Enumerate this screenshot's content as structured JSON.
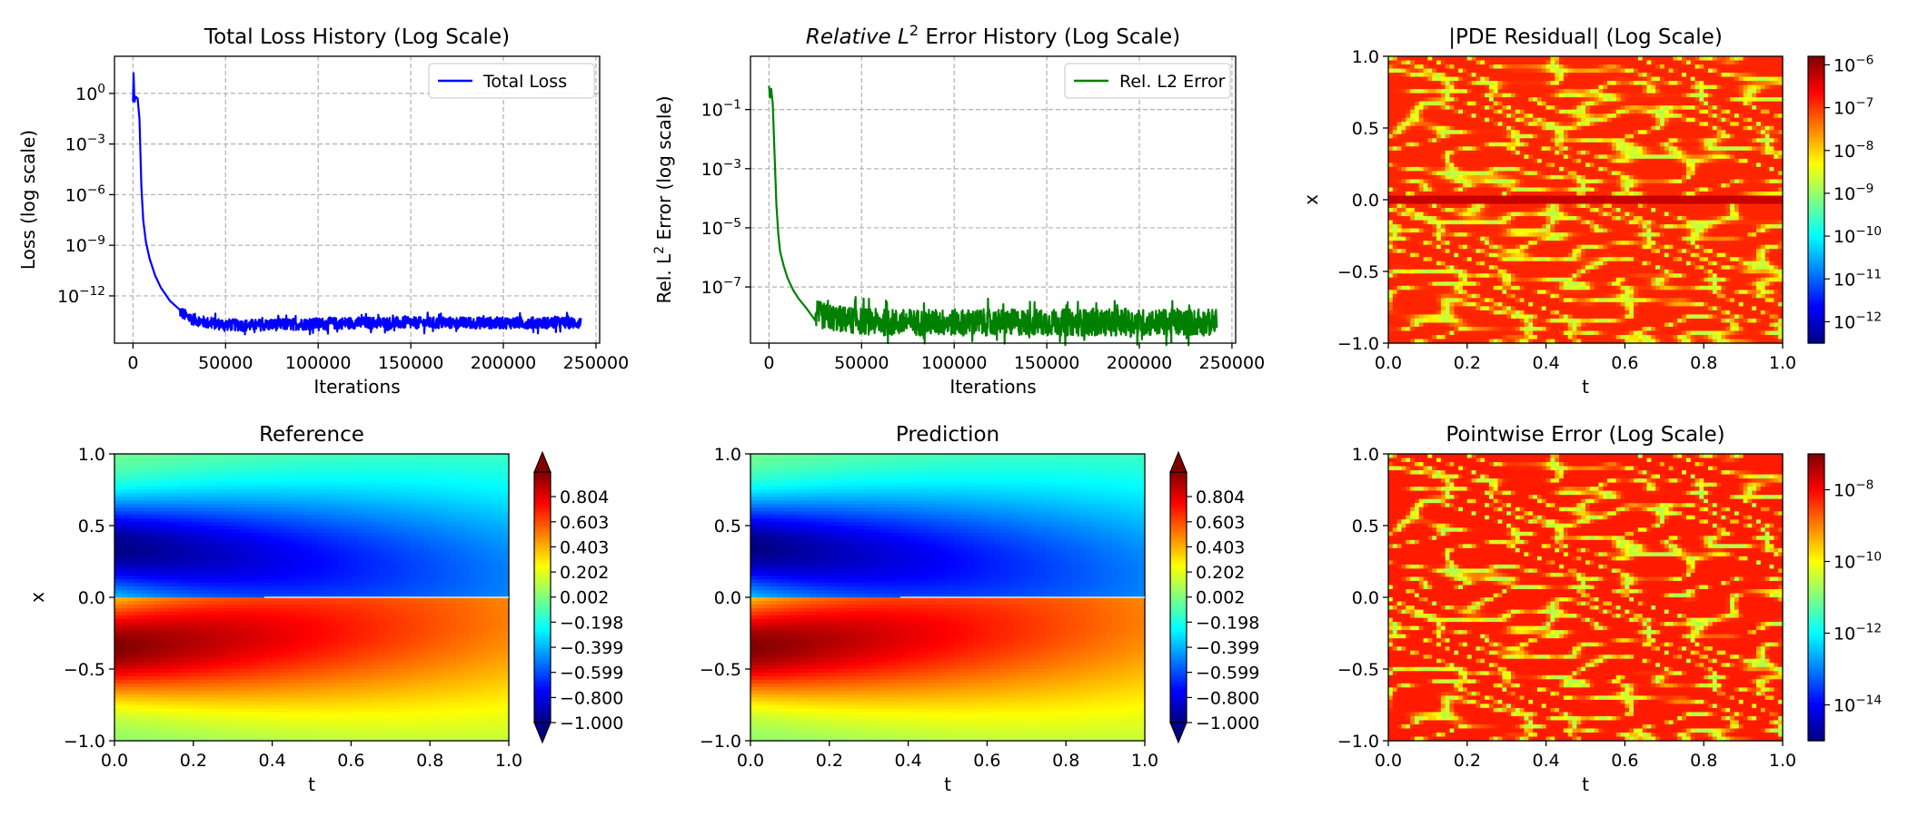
{
  "chart_data": [
    {
      "id": "loss",
      "type": "line",
      "title": "Total Loss History (Log Scale)",
      "xlabel": "Iterations",
      "ylabel": "Loss (log scale)",
      "yscale": "log",
      "xlim": [
        -10000,
        252000
      ],
      "ylim_exp": [
        -14.8,
        2.2
      ],
      "xticks": [
        0,
        50000,
        100000,
        150000,
        200000,
        250000
      ],
      "xtick_labels": [
        "0",
        "50000",
        "100000",
        "150000",
        "200000",
        "250000"
      ],
      "yticks_exp": [
        0,
        -3,
        -6,
        -9,
        -12
      ],
      "ytick_labels": [
        "10",
        "10",
        "10",
        "10",
        "10"
      ],
      "ytick_sups": [
        "0",
        "−3",
        "−6",
        "−9",
        "−12"
      ],
      "grid": true,
      "legend_position": "top-right",
      "series": [
        {
          "name": "Total Loss",
          "color": "#0000ff",
          "x": [
            0,
            300,
            800,
            1500,
            2500,
            3500,
            4500,
            5500,
            7000,
            9000,
            12000,
            15000,
            20000,
            25000,
            30000,
            40000,
            50000,
            60000,
            80000,
            100000,
            120000,
            140000,
            160000,
            180000,
            200000,
            220000,
            240000
          ],
          "log10_y": [
            -0.5,
            1.2,
            -0.5,
            -0.2,
            -0.3,
            -1.5,
            -5.5,
            -7.5,
            -8.8,
            -9.8,
            -10.8,
            -11.5,
            -12.3,
            -12.9,
            -13.3,
            -13.6,
            -13.7,
            -13.75,
            -13.7,
            -13.65,
            -13.6,
            -13.6,
            -13.6,
            -13.6,
            -13.6,
            -13.6,
            -13.6
          ],
          "noise_start": 25000,
          "noise_amp": 0.35,
          "noise_end": 242000
        }
      ]
    },
    {
      "id": "l2",
      "type": "line",
      "title": "Relative L",
      "title_sup": "2",
      "title_rest": " Error History (Log Scale)",
      "xlabel": "Iterations",
      "ylabel": "Rel. L",
      "ylabel_sup": "2",
      "ylabel_rest": " Error (log scale)",
      "yscale": "log",
      "xlim": [
        -10000,
        252000
      ],
      "ylim_exp": [
        -8.9,
        0.8
      ],
      "xticks": [
        0,
        50000,
        100000,
        150000,
        200000,
        250000
      ],
      "xtick_labels": [
        "0",
        "50000",
        "100000",
        "150000",
        "200000",
        "250000"
      ],
      "yticks_exp": [
        -1,
        -3,
        -5,
        -7
      ],
      "ytick_labels": [
        "10",
        "10",
        "10",
        "10"
      ],
      "ytick_sups": [
        "−1",
        "−3",
        "−5",
        "−7"
      ],
      "grid": true,
      "legend_position": "top-right",
      "series": [
        {
          "name": "Rel. L2 Error",
          "color": "#008000",
          "x": [
            0,
            500,
            1200,
            2000,
            3000,
            4000,
            5000,
            6000,
            8000,
            10000,
            13000,
            16000,
            20000,
            25000,
            30000,
            40000,
            50000,
            60000,
            80000,
            100000,
            120000,
            140000,
            160000,
            180000,
            200000,
            220000,
            240000
          ],
          "log10_y": [
            -0.2,
            -0.6,
            -0.3,
            -0.8,
            -2.5,
            -4.2,
            -5.2,
            -5.8,
            -6.3,
            -6.7,
            -7.1,
            -7.4,
            -7.7,
            -7.9,
            -8.0,
            -8.1,
            -8.15,
            -8.2,
            -8.2,
            -8.2,
            -8.2,
            -8.2,
            -8.2,
            -8.2,
            -8.2,
            -8.2,
            -8.2
          ],
          "noise_start": 25000,
          "noise_amp": 0.45,
          "noise_end": 242000
        }
      ]
    },
    {
      "id": "residual",
      "type": "heatmap",
      "title": "|PDE Residual| (Log Scale)",
      "xlabel": "t",
      "ylabel": "x",
      "xlim": [
        0.0,
        1.0
      ],
      "ylim": [
        -1.0,
        1.0
      ],
      "xtick_labels": [
        "0.0",
        "0.2",
        "0.4",
        "0.6",
        "0.8",
        "1.0"
      ],
      "ytick_labels": [
        "1.0",
        "0.5",
        "0.0",
        "−0.5",
        "−1.0"
      ],
      "colormap": "jet",
      "color_scale": "log",
      "colorbar_exp_range": [
        -12.5,
        -5.8
      ],
      "colorbar_ticks_exp": [
        -6,
        -7,
        -8,
        -9,
        -10,
        -11,
        -12
      ],
      "colorbar_tick_labels": [
        "10",
        "10",
        "10",
        "10",
        "10",
        "10",
        "10"
      ],
      "colorbar_tick_sups": [
        "−6",
        "−7",
        "−8",
        "−9",
        "−10",
        "−11",
        "−12"
      ]
    },
    {
      "id": "reference",
      "type": "heatmap",
      "title": "Reference",
      "xlabel": "t",
      "ylabel": "x",
      "xlim": [
        0.0,
        1.0
      ],
      "ylim": [
        -1.0,
        1.0
      ],
      "xtick_labels": [
        "0.0",
        "0.2",
        "0.4",
        "0.6",
        "0.8",
        "1.0"
      ],
      "ytick_labels": [
        "1.0",
        "0.5",
        "0.0",
        "−0.5",
        "−1.0"
      ],
      "colormap": "jet",
      "color_scale": "linear",
      "colorbar_range": [
        -1.0,
        1.0
      ],
      "colorbar_extend": "both",
      "colorbar_ticks": [
        0.804,
        0.603,
        0.403,
        0.202,
        0.002,
        -0.198,
        -0.399,
        -0.599,
        -0.8,
        -1.0
      ],
      "colorbar_tick_labels": [
        "0.804",
        "0.603",
        "0.403",
        "0.202",
        "0.002",
        "−0.198",
        "−0.399",
        "−0.599",
        "−0.800",
        "−1.000"
      ]
    },
    {
      "id": "prediction",
      "type": "heatmap",
      "title": "Prediction",
      "xlabel": "t",
      "ylabel": "",
      "xlim": [
        0.0,
        1.0
      ],
      "ylim": [
        -1.0,
        1.0
      ],
      "xtick_labels": [
        "0.0",
        "0.2",
        "0.4",
        "0.6",
        "0.8",
        "1.0"
      ],
      "ytick_labels": [
        "1.0",
        "0.5",
        "0.0",
        "−0.5",
        "−1.0"
      ],
      "colormap": "jet",
      "color_scale": "linear",
      "colorbar_range": [
        -1.0,
        1.0
      ],
      "colorbar_extend": "both",
      "colorbar_ticks": [
        0.804,
        0.603,
        0.403,
        0.202,
        0.002,
        -0.198,
        -0.399,
        -0.599,
        -0.8,
        -1.0
      ],
      "colorbar_tick_labels": [
        "0.804",
        "0.603",
        "0.403",
        "0.202",
        "0.002",
        "−0.198",
        "−0.399",
        "−0.599",
        "−0.800",
        "−1.000"
      ]
    },
    {
      "id": "pointwise",
      "type": "heatmap",
      "title": "Pointwise Error (Log Scale)",
      "xlabel": "t",
      "ylabel": "",
      "xlim": [
        0.0,
        1.0
      ],
      "ylim": [
        -1.0,
        1.0
      ],
      "xtick_labels": [
        "0.0",
        "0.2",
        "0.4",
        "0.6",
        "0.8",
        "1.0"
      ],
      "ytick_labels": [
        "1.0",
        "0.5",
        "0.0",
        "−0.5",
        "−1.0"
      ],
      "colormap": "jet",
      "color_scale": "log",
      "colorbar_exp_range": [
        -15.0,
        -7.0
      ],
      "colorbar_ticks_exp": [
        -8,
        -10,
        -12,
        -14
      ],
      "colorbar_tick_labels": [
        "10",
        "10",
        "10",
        "10"
      ],
      "colorbar_tick_sups": [
        "−8",
        "−10",
        "−12",
        "−14"
      ]
    }
  ]
}
